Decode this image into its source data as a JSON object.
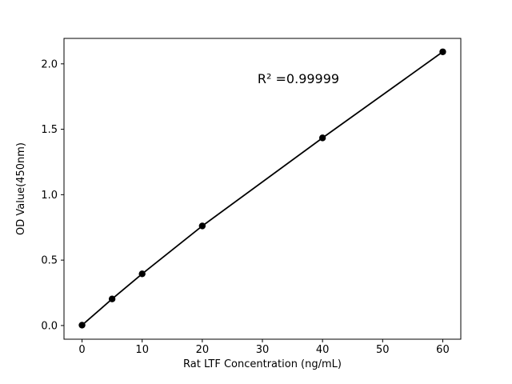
{
  "chart_data": {
    "type": "scatter",
    "title": "",
    "xlabel": "Rat LTF Concentration (ng/mL)",
    "ylabel": "OD Value(450nm)",
    "x": [
      0,
      5,
      10,
      20,
      40,
      60
    ],
    "y": [
      0.003,
      0.203,
      0.395,
      0.761,
      1.434,
      2.092
    ],
    "x_ticks": [
      0,
      10,
      20,
      30,
      40,
      50,
      60
    ],
    "y_ticks": [
      0.0,
      0.5,
      1.0,
      1.5,
      2.0
    ],
    "xlim": [
      -3,
      63
    ],
    "ylim": [
      -0.1045,
      2.1945
    ],
    "annotation": {
      "text": "R² =0.99999",
      "x": 36,
      "y": 1.85
    },
    "line_color": "#000000",
    "marker_color": "#000000",
    "grid": false,
    "legend": "none"
  }
}
